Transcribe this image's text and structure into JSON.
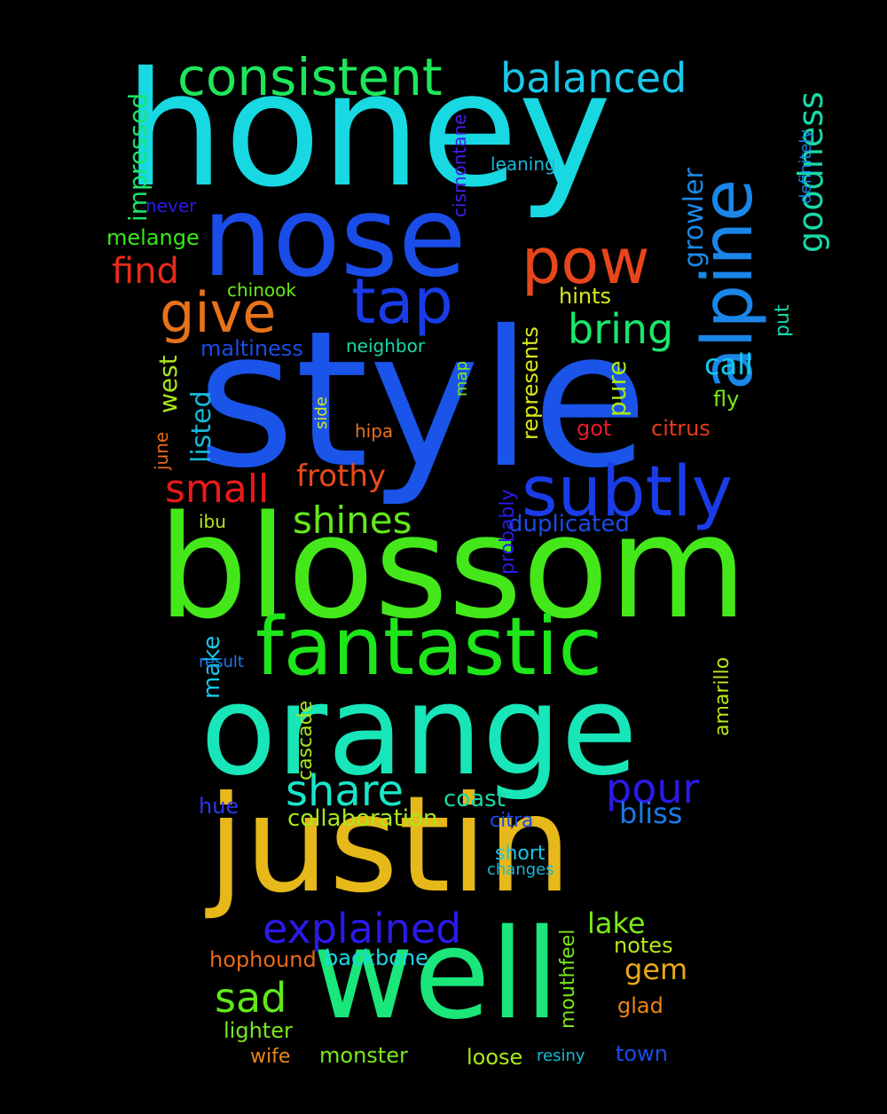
{
  "words": [
    {
      "text": "style",
      "color": "#1a54e8"
    },
    {
      "text": "honey",
      "color": "#18d8e2"
    },
    {
      "text": "blossom",
      "color": "#44e81a"
    },
    {
      "text": "orange",
      "color": "#18e6b8"
    },
    {
      "text": "nose",
      "color": "#1a4ce8"
    },
    {
      "text": "justin",
      "color": "#e6b81a"
    },
    {
      "text": "well",
      "color": "#1ae67a"
    },
    {
      "text": "fantastic",
      "color": "#1ee61a"
    },
    {
      "text": "subtly",
      "color": "#1a3ce8"
    },
    {
      "text": "alpine",
      "color": "#1a86e8"
    },
    {
      "text": "pow",
      "color": "#e8461a"
    },
    {
      "text": "tap",
      "color": "#1a3ce8"
    },
    {
      "text": "give",
      "color": "#e8721a"
    },
    {
      "text": "consistent",
      "color": "#1ee65a"
    },
    {
      "text": "balanced",
      "color": "#1ac8e8"
    },
    {
      "text": "explained",
      "color": "#2a1ae8"
    },
    {
      "text": "pour",
      "color": "#2a1ae8"
    },
    {
      "text": "share",
      "color": "#18e6c8"
    },
    {
      "text": "shines",
      "color": "#62e81a"
    },
    {
      "text": "bring",
      "color": "#1ae66a"
    },
    {
      "text": "small",
      "color": "#e81a1a"
    },
    {
      "text": "sad",
      "color": "#62e81a"
    },
    {
      "text": "goodness",
      "color": "#18d8a8"
    },
    {
      "text": "find",
      "color": "#e82a1a"
    },
    {
      "text": "growler",
      "color": "#1a8ae8"
    },
    {
      "text": "frothy",
      "color": "#e84a1a"
    },
    {
      "text": "call",
      "color": "#18c8e8"
    },
    {
      "text": "bliss",
      "color": "#1a7ae8"
    },
    {
      "text": "lake",
      "color": "#7ae81a"
    },
    {
      "text": "gem",
      "color": "#e8a81a"
    },
    {
      "text": "impressed",
      "color": "#1ae66a"
    },
    {
      "text": "west",
      "color": "#a8e81a"
    },
    {
      "text": "listed",
      "color": "#18b8d8"
    },
    {
      "text": "pure",
      "color": "#a8e81a"
    },
    {
      "text": "make",
      "color": "#18c8e8"
    },
    {
      "text": "collaboration",
      "color": "#a8e81a"
    },
    {
      "text": "duplicated",
      "color": "#1a4ce8"
    },
    {
      "text": "represents",
      "color": "#d8e81a"
    },
    {
      "text": "coast",
      "color": "#18d8a8"
    },
    {
      "text": "backbone",
      "color": "#18d8e8"
    },
    {
      "text": "melange",
      "color": "#3ae81a"
    },
    {
      "text": "maltiness",
      "color": "#1a4ce8"
    },
    {
      "text": "hophound",
      "color": "#e86a1a"
    },
    {
      "text": "lighter",
      "color": "#7ae81a"
    },
    {
      "text": "monster",
      "color": "#7ae81a"
    },
    {
      "text": "loose",
      "color": "#a8e81a"
    },
    {
      "text": "town",
      "color": "#1a4ce8"
    },
    {
      "text": "glad",
      "color": "#e8861a"
    },
    {
      "text": "notes",
      "color": "#b8e81a"
    },
    {
      "text": "hints",
      "color": "#d8e81a"
    },
    {
      "text": "citrus",
      "color": "#e83a1a"
    },
    {
      "text": "got",
      "color": "#e81a2a"
    },
    {
      "text": "fly",
      "color": "#7ae81a"
    },
    {
      "text": "put",
      "color": "#18d8a8"
    },
    {
      "text": "probably",
      "color": "#2a1ae8"
    },
    {
      "text": "amarillo",
      "color": "#b8e81a"
    },
    {
      "text": "cascade",
      "color": "#a8e81a"
    },
    {
      "text": "mouthfeel",
      "color": "#7ae81a"
    },
    {
      "text": "hue",
      "color": "#2a3ae8"
    },
    {
      "text": "citra",
      "color": "#1a4ce8"
    },
    {
      "text": "short",
      "color": "#18c8e8"
    },
    {
      "text": "wife",
      "color": "#e8861a"
    },
    {
      "text": "neighbor",
      "color": "#18d8a8"
    },
    {
      "text": "chinook",
      "color": "#6ae81a"
    },
    {
      "text": "never",
      "color": "#2a1ae8"
    },
    {
      "text": "leaning",
      "color": "#18b8d8"
    },
    {
      "text": "cismontane",
      "color": "#4a1ae8"
    },
    {
      "text": "definitely",
      "color": "#1a86e8"
    },
    {
      "text": "hipa",
      "color": "#e8721a"
    },
    {
      "text": "june",
      "color": "#e86a1a"
    },
    {
      "text": "side",
      "color": "#d8e81a"
    },
    {
      "text": "map",
      "color": "#7ae81a"
    },
    {
      "text": "ibu",
      "color": "#b8e81a"
    },
    {
      "text": "result",
      "color": "#1a7ae8"
    },
    {
      "text": "changes",
      "color": "#18b8d8"
    },
    {
      "text": "resiny",
      "color": "#18b8d8"
    }
  ]
}
